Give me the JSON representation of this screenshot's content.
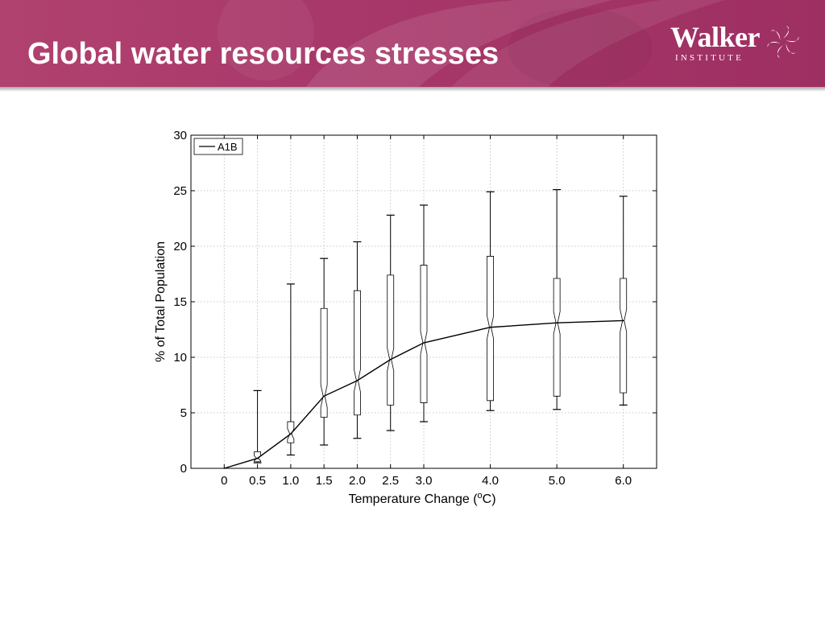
{
  "slide": {
    "title": "Global water resources stresses"
  },
  "logo": {
    "name": "Walker",
    "subtitle": "INSTITUTE",
    "icon": "pinwheel-logo-icon"
  },
  "colors": {
    "header": "#a8386a",
    "header_text": "#ffffff",
    "plot_line": "#000000",
    "grid": "#b0b0b0"
  },
  "chart_data": {
    "type": "line",
    "title": "",
    "xlabel": "Temperature Change (",
    "xlabel_sup": "o",
    "xlabel_end": "C)",
    "ylabel": "% of Total Population",
    "ylim": [
      0,
      30
    ],
    "yticks": [
      0,
      5,
      10,
      15,
      20,
      25,
      30
    ],
    "xlim": [
      -0.5,
      6.5
    ],
    "x": [
      0,
      0.5,
      1.0,
      1.5,
      2.0,
      2.5,
      3.0,
      4.0,
      5.0,
      6.0
    ],
    "xtick_labels": [
      "0",
      "0.5",
      "1.0",
      "1.5",
      "2.0",
      "2.5",
      "3.0",
      "4.0",
      "5.0",
      "6.0"
    ],
    "grid": true,
    "legend": {
      "position": "top-left",
      "entries": [
        "A1B"
      ]
    },
    "series": [
      {
        "name": "A1B",
        "values": [
          0,
          0.9,
          3.1,
          6.5,
          7.9,
          9.8,
          11.3,
          12.7,
          13.1,
          13.3
        ]
      }
    ],
    "whiskers": [
      {
        "x": 0.5,
        "low": 0.5,
        "high": 7.0,
        "q1": 0.6,
        "q3": 1.5
      },
      {
        "x": 1.0,
        "low": 1.2,
        "high": 16.6,
        "q1": 2.3,
        "q3": 4.2
      },
      {
        "x": 1.5,
        "low": 2.1,
        "high": 18.9,
        "q1": 4.6,
        "q3": 14.4
      },
      {
        "x": 2.0,
        "low": 2.7,
        "high": 20.4,
        "q1": 4.8,
        "q3": 16.0
      },
      {
        "x": 2.5,
        "low": 3.4,
        "high": 22.8,
        "q1": 5.7,
        "q3": 17.4
      },
      {
        "x": 3.0,
        "low": 4.2,
        "high": 23.7,
        "q1": 5.9,
        "q3": 18.3
      },
      {
        "x": 4.0,
        "low": 5.2,
        "high": 24.9,
        "q1": 6.1,
        "q3": 19.1
      },
      {
        "x": 5.0,
        "low": 5.3,
        "high": 25.1,
        "q1": 6.5,
        "q3": 17.1
      },
      {
        "x": 6.0,
        "low": 5.7,
        "high": 24.5,
        "q1": 6.8,
        "q3": 17.1
      }
    ]
  }
}
